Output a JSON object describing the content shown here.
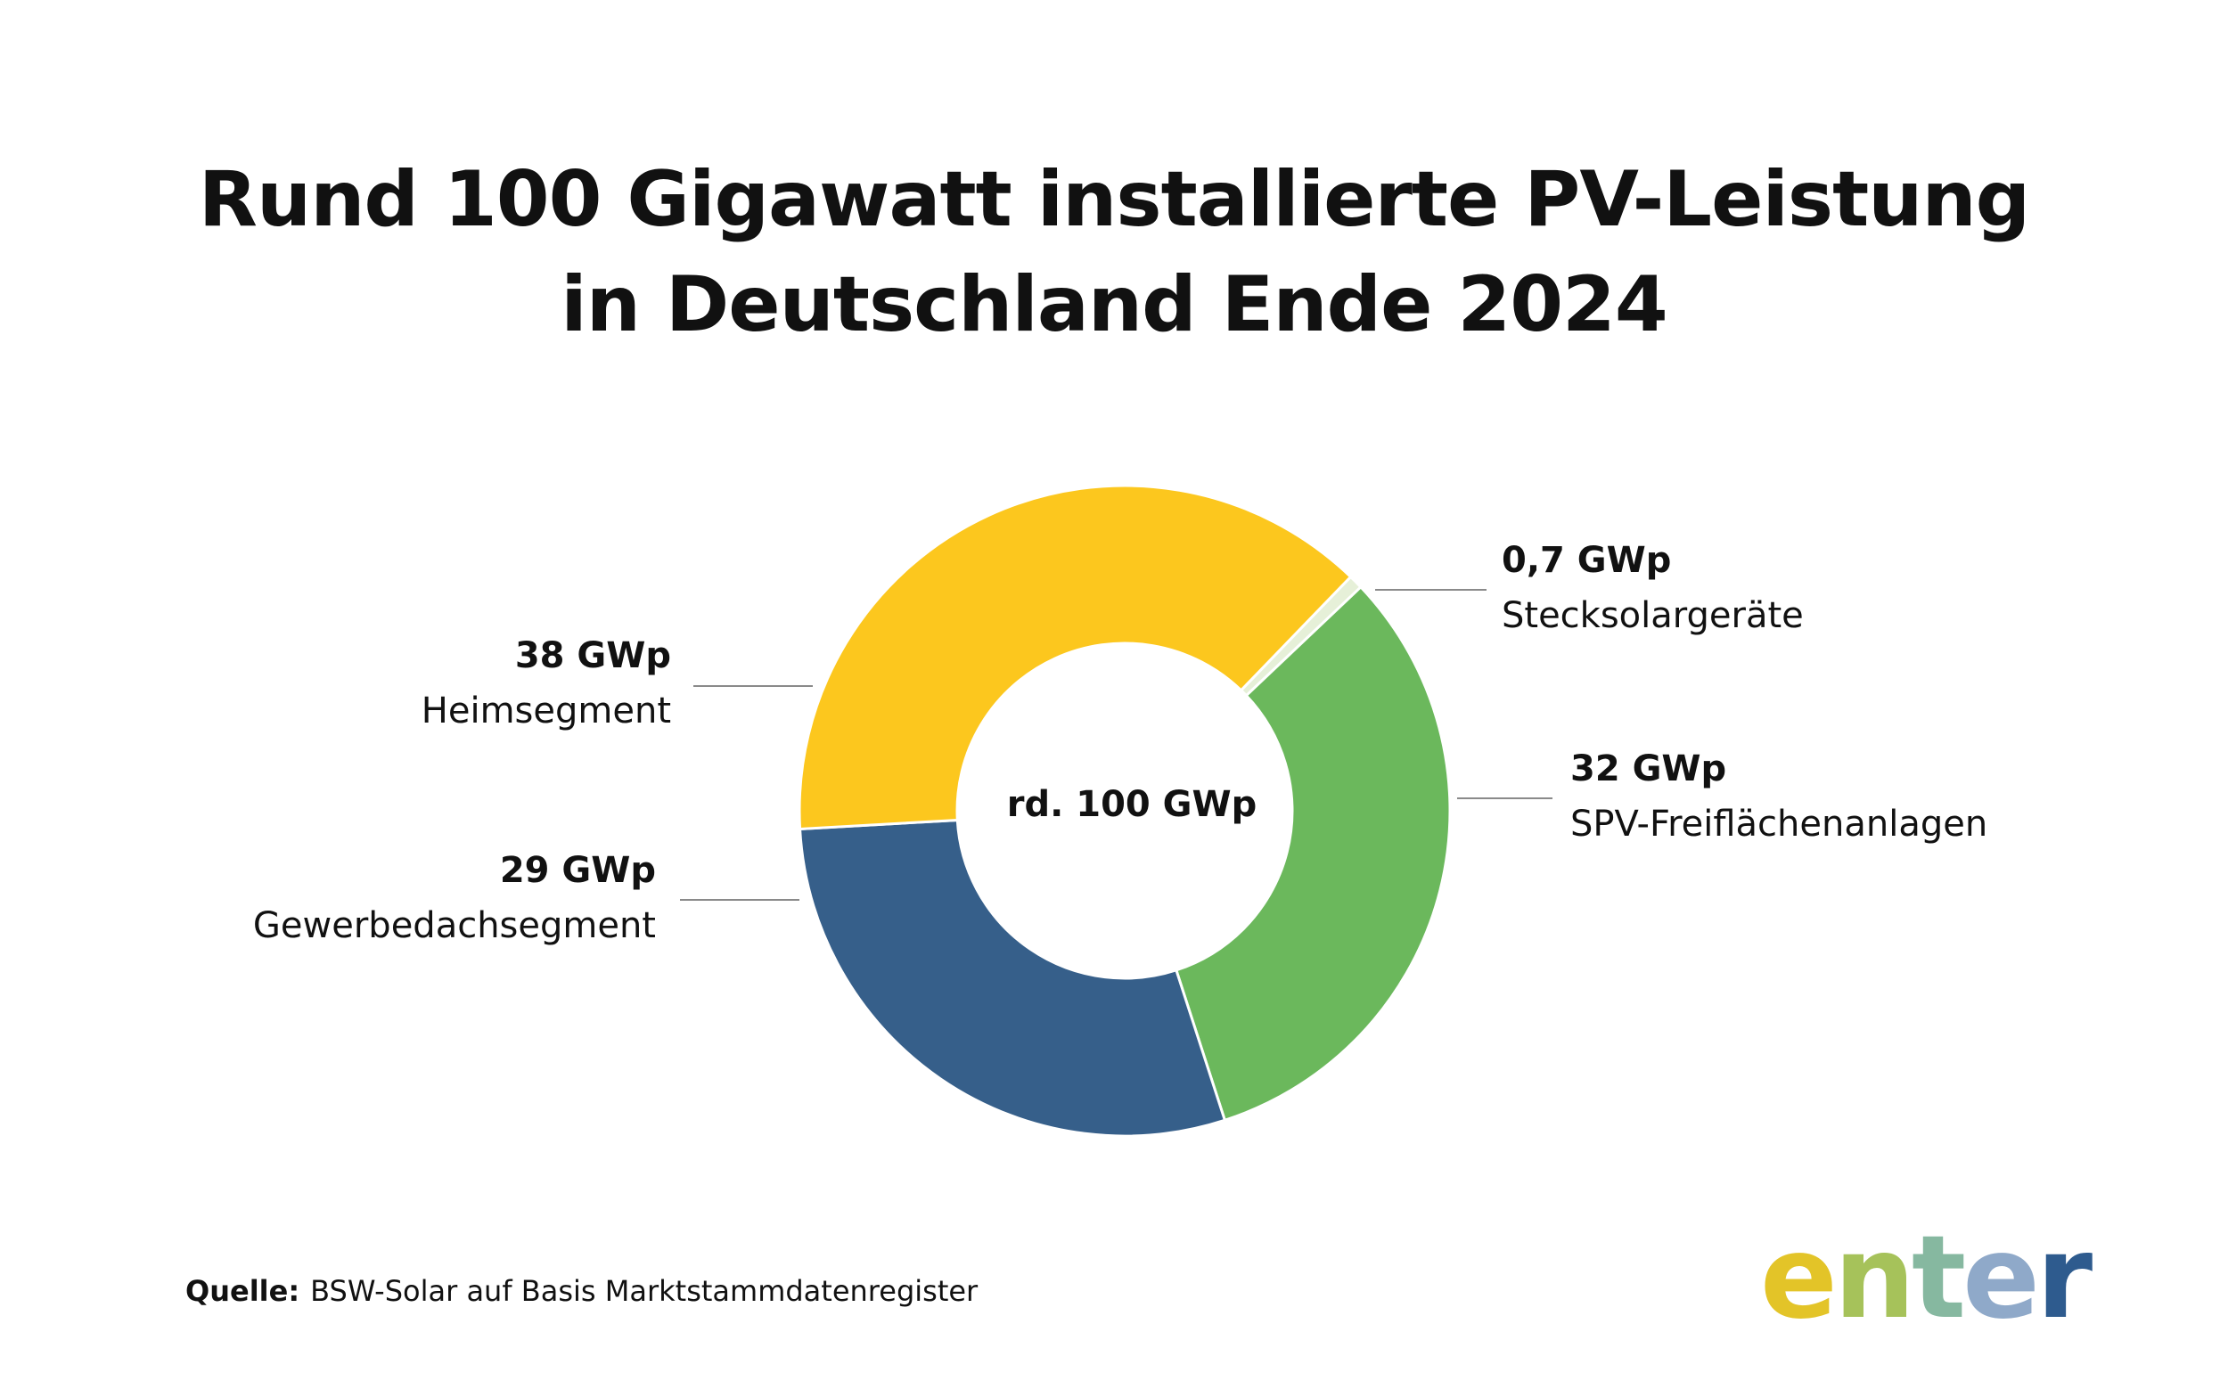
{
  "title": {
    "line1": "Rund 100 Gigawatt installierte PV-Leistung",
    "line2": "in Deutschland Ende 2024"
  },
  "chart_data": {
    "type": "donut",
    "center_label": "rd. 100 GWp",
    "unit": "GWp",
    "slices": [
      {
        "name": "Stecksolargeräte",
        "value": 0.7,
        "label": "0,7 GWp",
        "color": "#E6F0D8"
      },
      {
        "name": "SPV-Freiflächenanlagen",
        "value": 32,
        "label": "32 GWp",
        "color": "#6BB85C"
      },
      {
        "name": "Gewerbedachsegment",
        "value": 29,
        "label": "29 GWp",
        "color": "#365F8A"
      },
      {
        "name": "Heimsegment",
        "value": 38,
        "label": "38 GWp",
        "color": "#FCC71E"
      }
    ]
  },
  "source": {
    "label": "Quelle:",
    "text": "BSW-Solar auf Basis Marktstammdatenregister"
  },
  "logo": {
    "letters": [
      "e",
      "n",
      "t",
      "e",
      "r"
    ],
    "colors": [
      "#E3C428",
      "#A6C25A",
      "#86B8A0",
      "#8FA9C9",
      "#2E5B8E"
    ]
  }
}
